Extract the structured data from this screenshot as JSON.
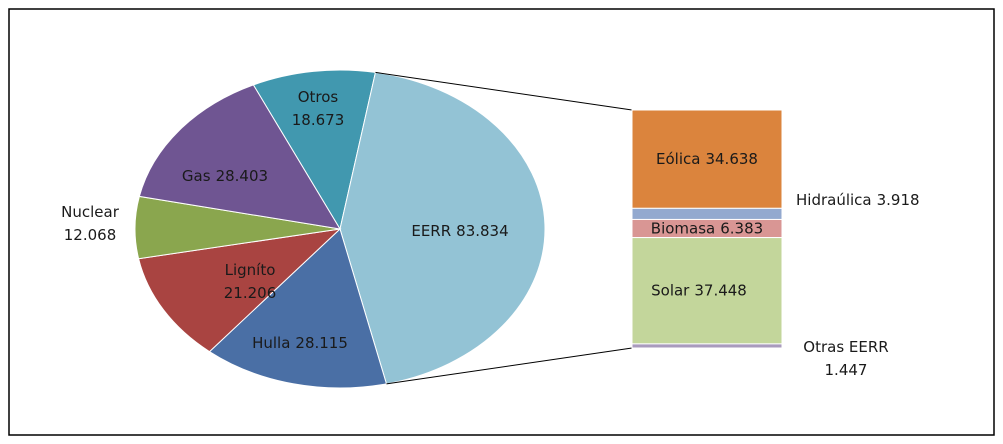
{
  "chart_data": {
    "type": "pie-of-bar",
    "pie": {
      "categories": [
        "Otros",
        "EERR",
        "Hulla",
        "Ligníto",
        "Nuclear",
        "Gas"
      ],
      "values": [
        18.673,
        83.834,
        28.115,
        21.206,
        12.068,
        28.403
      ],
      "colors": [
        "#4198af",
        "#93c3d5",
        "#4a6fa5",
        "#a94441",
        "#8aa64e",
        "#6f5592"
      ]
    },
    "bar": {
      "categories": [
        "Eólica",
        "Hidraúlica",
        "Biomasa",
        "Solar",
        "Otras EERR"
      ],
      "values": [
        34.638,
        3.918,
        6.383,
        37.448,
        1.447
      ],
      "colors": [
        "#db843d",
        "#93a9cf",
        "#d99694",
        "#c3d69b",
        "#a99bbd"
      ]
    }
  }
}
